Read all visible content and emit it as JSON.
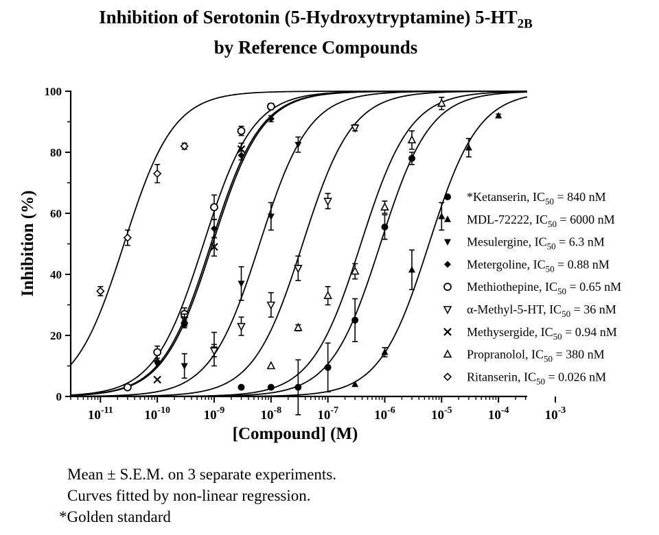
{
  "chart_data": {
    "type": "scatter",
    "title": {
      "line1_prefix": "Inhibition of  Serotonin (5-Hydroxytryptamine) 5-HT",
      "line1_sub": "2B",
      "line2": "by Reference Compounds"
    },
    "xlabel": "[Compound] (M)",
    "ylabel": "Inhibition (%)",
    "x_scale": "log",
    "xlim": [
      3e-12,
      0.00032
    ],
    "ylim": [
      0,
      100
    ],
    "x_ticks": [
      {
        "base": "10",
        "exp": "-11"
      },
      {
        "base": "10",
        "exp": "-10"
      },
      {
        "base": "10",
        "exp": "-9"
      },
      {
        "base": "10",
        "exp": "-8"
      },
      {
        "base": "10",
        "exp": "-7"
      },
      {
        "base": "10",
        "exp": "-6"
      },
      {
        "base": "10",
        "exp": "-5"
      },
      {
        "base": "10",
        "exp": "-4"
      },
      {
        "base": "10",
        "exp": "-3"
      }
    ],
    "y_ticks": [
      "0",
      "20",
      "40",
      "60",
      "80",
      "100"
    ],
    "legend_position": "right",
    "series": [
      {
        "label_pre": "*Ketanserin, IC",
        "label_sub": "50",
        "label_post": " = 840 nM",
        "marker": "circle-filled",
        "ic50": 8.4e-07,
        "hill": 1.0,
        "x": [
          3e-09,
          1e-08,
          3e-08,
          1e-07,
          3e-07,
          1e-06,
          3e-06
        ],
        "y": [
          3,
          3,
          3,
          9.5,
          25,
          55.5,
          78
        ],
        "err": [
          0,
          0,
          9,
          8,
          7,
          4,
          2
        ]
      },
      {
        "label_pre": "MDL-72222, IC",
        "label_sub": "50",
        "label_post": " = 6000 nM",
        "marker": "triangle-up-filled",
        "ic50": 6e-06,
        "hill": 1.0,
        "x": [
          3e-07,
          1e-06,
          3e-06,
          1e-05,
          3e-05,
          0.0001
        ],
        "y": [
          4,
          14.5,
          41.5,
          59,
          81.5,
          92
        ],
        "err": [
          0,
          1.5,
          6.5,
          4.5,
          3,
          0.5
        ]
      },
      {
        "label_pre": "Mesulergine, IC",
        "label_sub": "50",
        "label_post": " = 6.3 nM",
        "marker": "triangle-down-filled",
        "ic50": 6.3e-09,
        "hill": 1.0,
        "x": [
          1e-10,
          3e-10,
          1e-09,
          3e-09,
          1e-08,
          3e-08
        ],
        "y": [
          10.5,
          10,
          15.5,
          37,
          59,
          82.5
        ],
        "err": [
          0,
          4,
          5.5,
          5.5,
          4.5,
          2.5
        ]
      },
      {
        "label_pre": "Metergoline, IC",
        "label_sub": "50",
        "label_post": " = 0.88 nM",
        "marker": "diamond-filled",
        "ic50": 8.8e-10,
        "hill": 1.0,
        "x": [
          1e-10,
          3e-10,
          1e-09,
          3e-09,
          1e-08
        ],
        "y": [
          11.5,
          23.5,
          55,
          79,
          91
        ],
        "err": [
          0,
          1,
          3,
          1.5,
          1
        ]
      },
      {
        "label_pre": "Methiothepine, IC",
        "label_sub": "50",
        "label_post": " = 0.65 nM",
        "marker": "circle-open",
        "ic50": 6.5e-10,
        "hill": 1.0,
        "x": [
          3e-11,
          1e-10,
          3e-10,
          1e-09,
          3e-09,
          1e-08
        ],
        "y": [
          3,
          14.5,
          27,
          62,
          87,
          95
        ],
        "err": [
          0,
          2,
          2,
          4,
          1.5,
          1
        ]
      },
      {
        "label_pre": "α-Methyl-5-HT, IC",
        "label_sub": "50",
        "label_post": " = 36 nM",
        "marker": "triangle-down-open",
        "ic50": 3.6e-08,
        "hill": 1.0,
        "x": [
          1e-09,
          3e-09,
          1e-08,
          3e-08,
          1e-07,
          3e-07
        ],
        "y": [
          15,
          23,
          30,
          42,
          64,
          88
        ],
        "err": [
          2,
          3,
          4,
          4,
          2.5,
          1
        ]
      },
      {
        "label_pre": "Methysergide, IC",
        "label_sub": "50",
        "label_post": " = 0.94 nM",
        "marker": "cross",
        "ic50": 9.4e-10,
        "hill": 1.0,
        "x": [
          1e-10,
          3e-10,
          1e-09,
          3e-09
        ],
        "y": [
          5.5,
          25,
          49,
          81
        ],
        "err": [
          0,
          2,
          3,
          2
        ]
      },
      {
        "label_pre": "Propranolol, IC",
        "label_sub": "50",
        "label_post": " = 380 nM",
        "marker": "triangle-up-open",
        "ic50": 3.8e-07,
        "hill": 1.0,
        "x": [
          1e-08,
          3e-08,
          1e-07,
          3e-07,
          1e-06,
          3e-06,
          1e-05
        ],
        "y": [
          10,
          22.5,
          33,
          41,
          62,
          84,
          96
        ],
        "err": [
          0,
          1,
          3,
          2.5,
          2,
          3,
          2
        ]
      },
      {
        "label_pre": "Ritanserin, IC",
        "label_sub": "50",
        "label_post": " = 0.026 nM",
        "marker": "diamond-open",
        "ic50": 2.6e-11,
        "hill": 1.0,
        "x": [
          1e-11,
          3e-11,
          1e-10,
          3e-10
        ],
        "y": [
          34.5,
          52,
          73,
          82
        ],
        "err": [
          1.5,
          2.5,
          3,
          1
        ]
      }
    ]
  },
  "notes": {
    "line1": "Mean ± S.E.M. on 3 separate experiments.",
    "line2": "Curves fitted by non-linear regression.",
    "line3": "*Golden standard"
  }
}
